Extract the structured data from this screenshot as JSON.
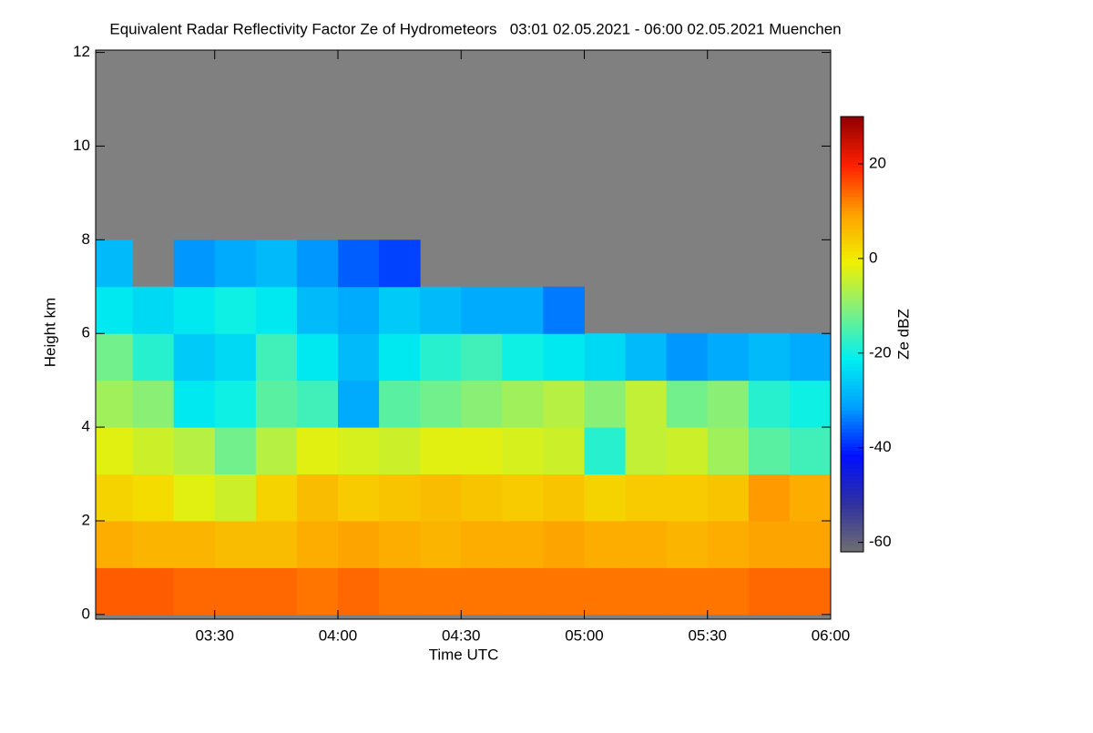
{
  "chart_data": {
    "type": "heatmap",
    "title": "Equivalent Radar Reflectivity Factor Ze of Hydrometeors   03:01 02.05.2021 - 06:00 02.05.2021 Muenchen",
    "x_label": "Time UTC",
    "y_label": "Height km",
    "colorbar_label": "Ze dBZ",
    "x": [
      185,
      195,
      205,
      215,
      225,
      235,
      245,
      255,
      265,
      275,
      285,
      295,
      305,
      315,
      325,
      335,
      345,
      355
    ],
    "y": [
      0.5,
      1.5,
      2.5,
      3.5,
      4.5,
      5.5,
      6.5,
      7.5,
      8.5,
      9.5,
      10.5,
      11.5
    ],
    "values": [
      [
        15,
        15,
        14,
        14,
        14,
        13,
        14,
        13,
        13,
        13,
        13,
        13,
        13,
        13,
        13,
        13,
        14,
        14
      ],
      [
        8,
        7,
        7,
        6,
        6,
        8,
        9,
        8,
        7,
        8,
        8,
        9,
        8,
        8,
        7,
        8,
        9,
        9
      ],
      [
        3,
        2,
        -2,
        -4,
        3,
        6,
        4,
        5,
        6,
        5,
        4,
        5,
        3,
        4,
        4,
        5,
        10,
        8
      ],
      [
        -2,
        -4,
        -6,
        -12,
        -6,
        -2,
        -3,
        -4,
        -2,
        -2,
        -3,
        -4,
        -18,
        -5,
        -4,
        -8,
        -14,
        -16
      ],
      [
        -8,
        -10,
        -22,
        -20,
        -14,
        -16,
        -30,
        -14,
        -12,
        -10,
        -8,
        -6,
        -10,
        -5,
        -12,
        -10,
        -18,
        -20
      ],
      [
        -12,
        -18,
        -26,
        -24,
        -16,
        -22,
        -28,
        -22,
        -18,
        -16,
        -20,
        -22,
        -24,
        -28,
        -32,
        -30,
        -28,
        -30
      ],
      [
        -22,
        -24,
        -22,
        -20,
        -22,
        -28,
        -30,
        -26,
        -28,
        -30,
        -30,
        -34,
        null,
        null,
        null,
        null,
        null,
        null
      ],
      [
        -28,
        null,
        -32,
        -30,
        -28,
        -32,
        -36,
        -38,
        null,
        null,
        null,
        null,
        null,
        null,
        null,
        null,
        null,
        null
      ],
      [
        null,
        null,
        null,
        null,
        null,
        null,
        null,
        null,
        null,
        null,
        null,
        null,
        null,
        null,
        null,
        null,
        null,
        null
      ],
      [
        null,
        null,
        null,
        null,
        null,
        null,
        null,
        null,
        null,
        null,
        null,
        null,
        null,
        null,
        null,
        null,
        null,
        null
      ],
      [
        null,
        null,
        null,
        null,
        null,
        null,
        null,
        null,
        null,
        null,
        null,
        null,
        null,
        null,
        null,
        null,
        null,
        null
      ],
      [
        null,
        null,
        null,
        null,
        null,
        null,
        null,
        null,
        null,
        null,
        null,
        null,
        null,
        null,
        null,
        null,
        null,
        null
      ]
    ],
    "xlim": [
      181,
      360
    ],
    "xticks": [
      {
        "value": 210,
        "label": "03:30"
      },
      {
        "value": 240,
        "label": "04:00"
      },
      {
        "value": 270,
        "label": "04:30"
      },
      {
        "value": 300,
        "label": "05:00"
      },
      {
        "value": 330,
        "label": "05:30"
      },
      {
        "value": 360,
        "label": "06:00"
      }
    ],
    "ylim": [
      -0.1,
      12.05
    ],
    "yticks": [
      0,
      2,
      4,
      6,
      8,
      10,
      12
    ],
    "zlim": [
      -62,
      30
    ],
    "zticks": [
      -60,
      -40,
      -20,
      0,
      20
    ],
    "background_color": "#808080",
    "colors": [
      "#707070",
      "#3030a0",
      "#0010ff",
      "#00a0ff",
      "#00f0f0",
      "#80f080",
      "#f0f000",
      "#ffa000",
      "#ff2000",
      "#900000"
    ]
  }
}
